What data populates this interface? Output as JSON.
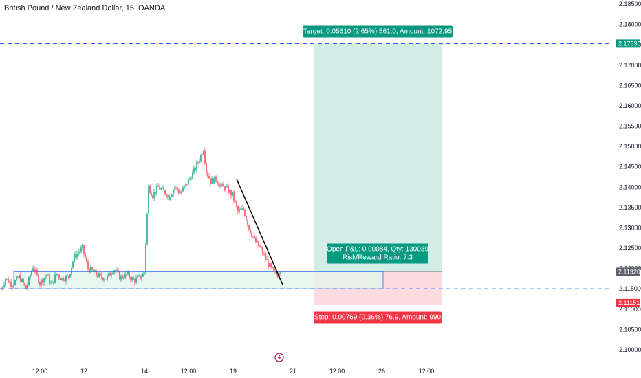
{
  "title": "British Pound / New Zealand Dollar, 15, OANDA",
  "chart_data": {
    "type": "candlestick",
    "y_ticks": [
      "2.18500",
      "2.18000",
      "2.17500",
      "2.17000",
      "2.16500",
      "2.16000",
      "2.15500",
      "2.15000",
      "2.14500",
      "2.14000",
      "2.13500",
      "2.13000",
      "2.12500",
      "2.12000",
      "2.11500",
      "2.11000",
      "2.10500",
      "2.10000"
    ],
    "x_ticks": [
      "12:00",
      "12",
      "14",
      "12:00",
      "19",
      "21",
      "12:00",
      "26",
      "12:00"
    ],
    "ylim": [
      2.0985,
      2.1875
    ],
    "price_path": [
      [
        0,
        2.114
      ],
      [
        8,
        2.1175
      ],
      [
        18,
        2.116
      ],
      [
        28,
        2.118
      ],
      [
        38,
        2.115
      ],
      [
        48,
        2.1205
      ],
      [
        58,
        2.1165
      ],
      [
        68,
        2.1185
      ],
      [
        75,
        2.1158
      ],
      [
        82,
        2.1188
      ],
      [
        90,
        2.1175
      ],
      [
        100,
        2.118
      ],
      [
        108,
        2.123
      ],
      [
        120,
        2.125
      ],
      [
        128,
        2.12
      ],
      [
        138,
        2.1188
      ],
      [
        146,
        2.118
      ],
      [
        155,
        2.1175
      ],
      [
        165,
        2.12
      ],
      [
        175,
        2.1178
      ],
      [
        185,
        2.1185
      ],
      [
        195,
        2.117
      ],
      [
        205,
        2.118
      ],
      [
        210,
        2.119
      ],
      [
        213,
        2.13
      ],
      [
        216,
        2.14
      ],
      [
        222,
        2.138
      ],
      [
        230,
        2.14
      ],
      [
        238,
        2.139
      ],
      [
        246,
        2.1375
      ],
      [
        254,
        2.14
      ],
      [
        262,
        2.1385
      ],
      [
        272,
        2.141
      ],
      [
        282,
        2.144
      ],
      [
        290,
        2.147
      ],
      [
        296,
        2.1495
      ],
      [
        300,
        2.144
      ],
      [
        306,
        2.1415
      ],
      [
        314,
        2.142
      ],
      [
        322,
        2.14
      ],
      [
        330,
        2.1395
      ],
      [
        338,
        2.138
      ],
      [
        346,
        2.134
      ],
      [
        354,
        2.1345
      ],
      [
        362,
        2.13
      ],
      [
        370,
        2.127
      ],
      [
        380,
        2.1245
      ],
      [
        390,
        2.121
      ],
      [
        398,
        2.119
      ],
      [
        404,
        2.1185
      ],
      [
        410,
        2.1205
      ]
    ],
    "position": {
      "entry": 2.1192,
      "target": 2.1753,
      "stop": 2.11151,
      "target_label": "Target: 0.05610 (2.65%) 561.0, Amount: 1072.95",
      "stop_label": "Stop: 0.00769 (0.36%) 76.9, Amount: 990",
      "pnl_line1": "Open P&L: 0.00084, Qty: 130039",
      "pnl_line2": "Risk/Reward Ratio: 7.3"
    },
    "price_tags": [
      {
        "value": "2.17530",
        "color": "#089981"
      },
      {
        "value": "2.11920",
        "color": "#5d606b"
      },
      {
        "value": "2.11151",
        "color": "#f23645"
      }
    ],
    "zone": {
      "top": 2.1192,
      "bottom": 2.115
    },
    "trendline": {
      "from": 2.142,
      "to": 2.116
    },
    "colors": {
      "up": "#089981",
      "down": "#f23645",
      "dashed_line": "#2962ff",
      "target_fill": "#b9e3d9",
      "stop_fill": "#fcd6da",
      "zone_fill": "#e3f5ee",
      "zone_border": "#4f83f0",
      "event_icon": "#c2185b"
    }
  }
}
